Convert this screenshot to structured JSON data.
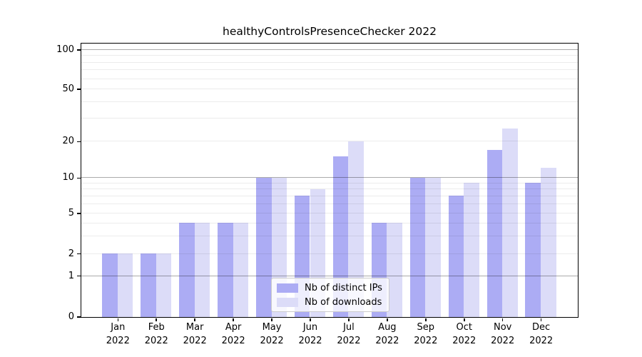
{
  "chart_data": {
    "type": "bar",
    "title": "healthyControlsPresenceChecker 2022",
    "year": "2022",
    "months": [
      "Jan",
      "Feb",
      "Mar",
      "Apr",
      "May",
      "Jun",
      "Jul",
      "Aug",
      "Sep",
      "Oct",
      "Nov",
      "Dec"
    ],
    "categories": [
      "Jan 2022",
      "Feb 2022",
      "Mar 2022",
      "Apr 2022",
      "May 2022",
      "Jun 2022",
      "Jul 2022",
      "Aug 2022",
      "Sep 2022",
      "Oct 2022",
      "Nov 2022",
      "Dec 2022"
    ],
    "series": [
      {
        "name": "Nb of distinct IPs",
        "color": "#acacf4",
        "values": [
          2,
          2,
          4,
          4,
          10,
          7,
          15,
          4,
          10,
          7,
          17,
          9
        ]
      },
      {
        "name": "Nb of downloads",
        "color": "#dcdcf8",
        "values": [
          2,
          2,
          4,
          4,
          10,
          8,
          20,
          4,
          10,
          9,
          25,
          12
        ]
      }
    ],
    "yscale": "symlog",
    "yticks": [
      0,
      1,
      2,
      5,
      10,
      20,
      50,
      100
    ],
    "ylim": [
      0,
      100
    ],
    "grid": "horizontal",
    "legend_position": "lower center",
    "colors": {
      "bar_dark": "#acacf4",
      "bar_light": "#dcdcf8",
      "axis": "#000000",
      "grid_major": "rgba(0,0,0,0.33)",
      "grid_minor": "rgba(0,0,0,0.075)"
    }
  }
}
